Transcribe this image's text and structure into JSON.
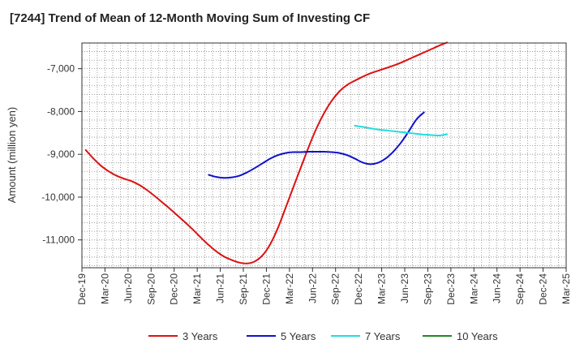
{
  "chart_data": {
    "type": "line",
    "title": "[7244]  Trend of Mean of 12-Month Moving Sum of Investing CF",
    "xlabel": "",
    "ylabel": "Amount (million yen)",
    "ylim": [
      -11650,
      -6400
    ],
    "y_ticks": [
      -7000,
      -8000,
      -9000,
      -10000,
      -11000
    ],
    "y_tick_labels": [
      "-7,000",
      "-8,000",
      "-9,000",
      "-10,000",
      "-11,000"
    ],
    "x_ticks": [
      "Dec-19",
      "Mar-20",
      "Jun-20",
      "Sep-20",
      "Dec-20",
      "Mar-21",
      "Jun-21",
      "Sep-21",
      "Dec-21",
      "Mar-22",
      "Jun-22",
      "Sep-22",
      "Dec-22",
      "Mar-23",
      "Jun-23",
      "Sep-23",
      "Dec-23",
      "Mar-24",
      "Jun-24",
      "Sep-24",
      "Dec-24",
      "Mar-25"
    ],
    "grid": true,
    "legend_position": "bottom",
    "series": [
      {
        "name": "3 Years",
        "color": "#dd1111",
        "values": [
          [
            0,
            -8900
          ],
          [
            1,
            -9100
          ],
          [
            2,
            -9270
          ],
          [
            3,
            -9400
          ],
          [
            4,
            -9500
          ],
          [
            5,
            -9570
          ],
          [
            6,
            -9630
          ],
          [
            7,
            -9720
          ],
          [
            8,
            -9840
          ],
          [
            9,
            -9980
          ],
          [
            10,
            -10130
          ],
          [
            11,
            -10280
          ],
          [
            12,
            -10440
          ],
          [
            13,
            -10600
          ],
          [
            14,
            -10770
          ],
          [
            15,
            -10950
          ],
          [
            16,
            -11120
          ],
          [
            17,
            -11270
          ],
          [
            18,
            -11390
          ],
          [
            19,
            -11470
          ],
          [
            20,
            -11530
          ],
          [
            21,
            -11550
          ],
          [
            22,
            -11500
          ],
          [
            23,
            -11360
          ],
          [
            24,
            -11100
          ],
          [
            25,
            -10720
          ],
          [
            26,
            -10250
          ],
          [
            27,
            -9770
          ],
          [
            28,
            -9300
          ],
          [
            29,
            -8830
          ],
          [
            30,
            -8400
          ],
          [
            31,
            -8040
          ],
          [
            32,
            -7750
          ],
          [
            33,
            -7530
          ],
          [
            34,
            -7380
          ],
          [
            35,
            -7280
          ],
          [
            36,
            -7190
          ],
          [
            37,
            -7110
          ],
          [
            38,
            -7050
          ],
          [
            39,
            -6990
          ],
          [
            40,
            -6930
          ],
          [
            41,
            -6860
          ],
          [
            42,
            -6780
          ],
          [
            43,
            -6700
          ],
          [
            44,
            -6620
          ],
          [
            45,
            -6540
          ],
          [
            46,
            -6460
          ],
          [
            47,
            -6390
          ]
        ]
      },
      {
        "name": "5 Years",
        "color": "#1111cc",
        "values": [
          [
            16,
            -9480
          ],
          [
            17,
            -9530
          ],
          [
            18,
            -9550
          ],
          [
            19,
            -9540
          ],
          [
            20,
            -9500
          ],
          [
            21,
            -9420
          ],
          [
            22,
            -9320
          ],
          [
            23,
            -9210
          ],
          [
            24,
            -9100
          ],
          [
            25,
            -9020
          ],
          [
            26,
            -8970
          ],
          [
            27,
            -8950
          ],
          [
            28,
            -8950
          ],
          [
            29,
            -8940
          ],
          [
            30,
            -8940
          ],
          [
            31,
            -8940
          ],
          [
            32,
            -8950
          ],
          [
            33,
            -8970
          ],
          [
            34,
            -9020
          ],
          [
            35,
            -9100
          ],
          [
            36,
            -9190
          ],
          [
            37,
            -9230
          ],
          [
            38,
            -9200
          ],
          [
            39,
            -9100
          ],
          [
            40,
            -8940
          ],
          [
            41,
            -8730
          ],
          [
            42,
            -8470
          ],
          [
            43,
            -8190
          ],
          [
            44,
            -8020
          ]
        ]
      },
      {
        "name": "7 Years",
        "color": "#22dddd",
        "values": [
          [
            35,
            -8330
          ],
          [
            36,
            -8360
          ],
          [
            37,
            -8390
          ],
          [
            38,
            -8420
          ],
          [
            39,
            -8440
          ],
          [
            40,
            -8460
          ],
          [
            41,
            -8480
          ],
          [
            42,
            -8500
          ],
          [
            43,
            -8520
          ],
          [
            44,
            -8540
          ],
          [
            45,
            -8550
          ],
          [
            46,
            -8560
          ],
          [
            47,
            -8530
          ]
        ]
      },
      {
        "name": "10 Years",
        "color": "#228822",
        "values": []
      }
    ]
  }
}
